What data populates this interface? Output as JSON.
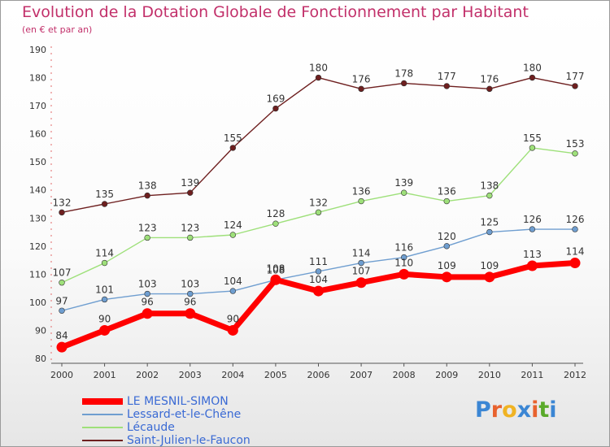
{
  "header": {
    "title": "Evolution de la Dotation Globale de Fonctionnement par Habitant",
    "subtitle": "(en € et par an)"
  },
  "logo": {
    "letters": [
      "P",
      "r",
      "o",
      "x",
      "i",
      "t",
      "i"
    ],
    "colors": [
      "#3b86d4",
      "#e8622e",
      "#f0b323",
      "#3b86d4",
      "#e8622e",
      "#5aaa2a",
      "#3b86d4"
    ]
  },
  "chart_data": {
    "type": "line",
    "title": "Evolution de la Dotation Globale de Fonctionnement par Habitant",
    "subtitle": "(en € et par an)",
    "xlabel": "",
    "ylabel": "",
    "x": [
      2000,
      2001,
      2002,
      2003,
      2004,
      2005,
      2006,
      2007,
      2008,
      2009,
      2010,
      2011,
      2012
    ],
    "y_ticks": [
      80,
      90,
      100,
      110,
      120,
      130,
      140,
      150,
      160,
      170,
      180,
      190
    ],
    "ylim": [
      80,
      190
    ],
    "grid": false,
    "legend_position": "bottom-left",
    "series": [
      {
        "name": "LE MESNIL-SIMON",
        "color": "#ff0000",
        "values": [
          84,
          90,
          96,
          96,
          90,
          108,
          104,
          107,
          110,
          109,
          109,
          113,
          114
        ]
      },
      {
        "name": "Lessard-et-le-Chêne",
        "color": "#6f9ed0",
        "values": [
          97,
          101,
          103,
          103,
          104,
          108,
          111,
          114,
          116,
          120,
          125,
          126,
          126
        ]
      },
      {
        "name": "Lécaude",
        "color": "#9ee07a",
        "values": [
          107,
          114,
          123,
          123,
          124,
          128,
          132,
          136,
          139,
          136,
          138,
          155,
          153
        ]
      },
      {
        "name": "Saint-Julien-le-Faucon",
        "color": "#6e1f1f",
        "values": [
          132,
          135,
          138,
          139,
          155,
          169,
          180,
          176,
          178,
          177,
          176,
          180,
          177
        ]
      }
    ]
  }
}
